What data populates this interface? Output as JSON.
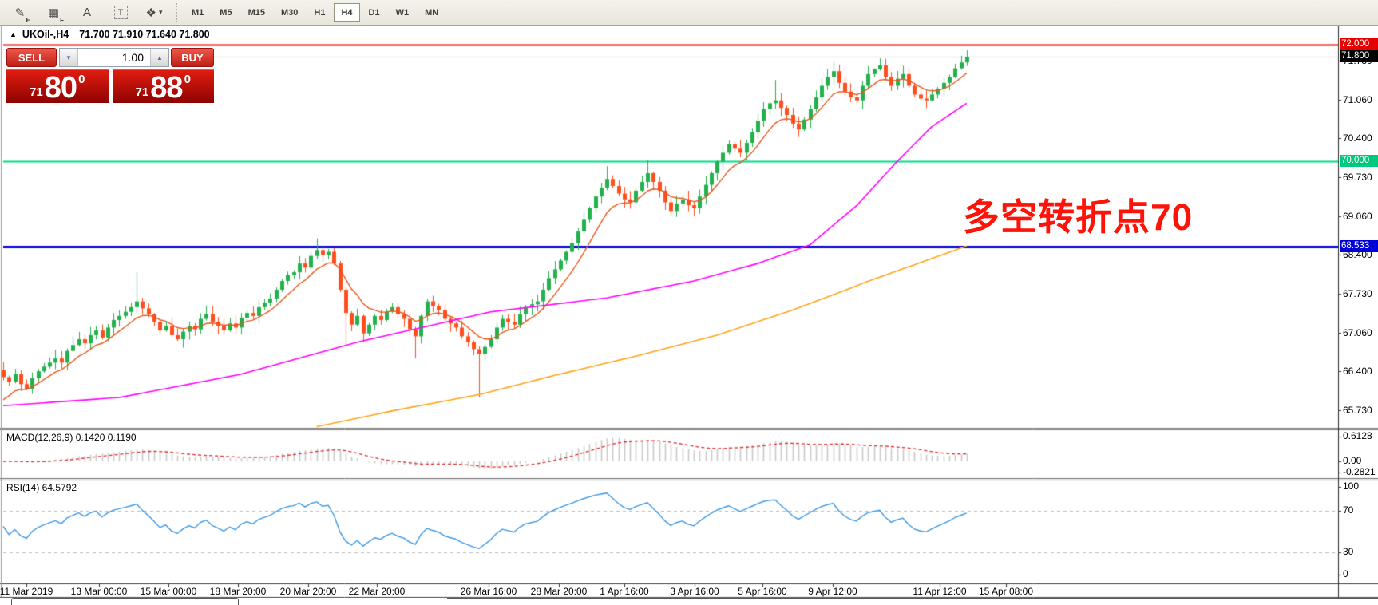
{
  "toolbar": {
    "icons": [
      {
        "name": "draw-hatch-icon",
        "glyph": "✎",
        "sub": "E",
        "boxed": false,
        "dropdown": false
      },
      {
        "name": "grid-icon",
        "glyph": "▦",
        "sub": "F",
        "boxed": false,
        "dropdown": false
      },
      {
        "name": "text-label-icon",
        "glyph": "A",
        "sub": "",
        "boxed": false,
        "dropdown": false
      },
      {
        "name": "text-box-icon",
        "glyph": "T",
        "sub": "",
        "boxed": true,
        "dropdown": false
      },
      {
        "name": "objects-arrange-icon",
        "glyph": "❖",
        "sub": "",
        "boxed": false,
        "dropdown": true
      }
    ],
    "timeframes": [
      {
        "label": "M1",
        "active": false
      },
      {
        "label": "M5",
        "active": false
      },
      {
        "label": "M15",
        "active": false
      },
      {
        "label": "M30",
        "active": false
      },
      {
        "label": "H1",
        "active": false
      },
      {
        "label": "H4",
        "active": true
      },
      {
        "label": "D1",
        "active": false
      },
      {
        "label": "W1",
        "active": false
      },
      {
        "label": "MN",
        "active": false
      }
    ]
  },
  "chart_window": {
    "collapse_arrow": "▲",
    "title_symbol": "UKOil-,H4",
    "title_ohlc": "71.700 71.910 71.640 71.800",
    "annotation": {
      "text": "多空转折点70",
      "color": "#FF1208"
    }
  },
  "trade_panel": {
    "sell_label": "SELL",
    "buy_label": "BUY",
    "volume": "1.00",
    "spin_down": "▼",
    "spin_up": "▲",
    "sell_price": {
      "prefix": "71",
      "big": "80",
      "sup": "0"
    },
    "buy_price": {
      "prefix": "71",
      "big": "88",
      "sup": "0"
    }
  },
  "macd_panel": {
    "label": "MACD(12,26,9) 0.1420 0.1190",
    "axis_labels": [
      "0.6128",
      "0.00",
      "-0.2821"
    ]
  },
  "rsi_panel": {
    "label": "RSI(14) 64.5792",
    "axis_labels": [
      "100",
      "70",
      "30",
      "0"
    ]
  },
  "price_axis": {
    "ticks": [
      "71.730",
      "71.060",
      "70.400",
      "69.730",
      "69.060",
      "68.400",
      "67.730",
      "67.060",
      "66.400",
      "65.730"
    ],
    "badges": [
      {
        "name": "resistance-price-badge",
        "label": "72.000",
        "price": 72.0,
        "bg": "#E60000"
      },
      {
        "name": "current-price-badge",
        "label": "71.800",
        "price": 71.8,
        "bg": "#000000"
      },
      {
        "name": "green-level-price-badge",
        "label": "70.000",
        "price": 70.0,
        "bg": "#00C87D"
      },
      {
        "name": "blue-level-price-badge",
        "label": "68.533",
        "price": 68.533,
        "bg": "#0000D9"
      }
    ]
  },
  "time_axis": {
    "labels": [
      "11 Mar 2019",
      "13 Mar 00:00",
      "15 Mar 00:00",
      "18 Mar 20:00",
      "20 Mar 20:00",
      "22 Mar 20:00",
      "26 Mar 16:00",
      "28 Mar 20:00",
      "1 Apr 16:00",
      "3 Apr 16:00",
      "5 Apr 16:00",
      "9 Apr 12:00",
      "11 Apr 12:00",
      "15 Apr 08:00"
    ]
  },
  "chart_data": {
    "type": "candlestick",
    "symbol": "UKOil-",
    "timeframe": "H4",
    "ohlc_current": {
      "open": 71.7,
      "high": 71.91,
      "low": 71.64,
      "close": 71.8
    },
    "ylim": [
      65.43,
      72.32
    ],
    "closes": [
      66.3,
      66.22,
      66.35,
      66.18,
      66.1,
      66.28,
      66.4,
      66.48,
      66.55,
      66.62,
      66.55,
      66.75,
      66.85,
      66.95,
      66.88,
      67.02,
      67.1,
      66.98,
      67.15,
      67.28,
      67.35,
      67.42,
      67.5,
      67.6,
      67.48,
      67.38,
      67.25,
      67.1,
      67.18,
      67.02,
      66.95,
      67.08,
      67.18,
      67.12,
      67.3,
      67.38,
      67.25,
      67.18,
      67.1,
      67.22,
      67.15,
      67.32,
      67.4,
      67.35,
      67.5,
      67.58,
      67.65,
      67.8,
      67.95,
      68.05,
      68.1,
      68.25,
      68.18,
      68.38,
      68.48,
      68.4,
      68.45,
      68.25,
      67.8,
      67.4,
      67.2,
      67.35,
      67.05,
      67.2,
      67.35,
      67.28,
      67.42,
      67.5,
      67.38,
      67.3,
      67.12,
      67.0,
      67.35,
      67.6,
      67.52,
      67.45,
      67.3,
      67.22,
      67.15,
      67.0,
      66.9,
      66.78,
      66.7,
      66.82,
      66.95,
      67.15,
      67.3,
      67.25,
      67.2,
      67.38,
      67.5,
      67.55,
      67.6,
      67.8,
      68.0,
      68.15,
      68.3,
      68.45,
      68.6,
      68.8,
      69.0,
      69.2,
      69.4,
      69.55,
      69.7,
      69.58,
      69.45,
      69.35,
      69.3,
      69.5,
      69.65,
      69.8,
      69.65,
      69.5,
      69.3,
      69.15,
      69.28,
      69.35,
      69.25,
      69.2,
      69.4,
      69.6,
      69.8,
      70.0,
      70.15,
      70.3,
      70.22,
      70.15,
      70.32,
      70.5,
      70.7,
      70.9,
      71.0,
      71.05,
      70.92,
      70.8,
      70.65,
      70.55,
      70.72,
      70.9,
      71.1,
      71.3,
      71.45,
      71.55,
      71.35,
      71.2,
      71.1,
      71.05,
      71.3,
      71.5,
      71.58,
      71.65,
      71.45,
      71.3,
      71.42,
      71.5,
      71.3,
      71.15,
      71.08,
      71.05,
      71.15,
      71.25,
      71.35,
      71.45,
      71.6,
      71.7
    ],
    "wick_overrides": [
      {
        "i": 23,
        "h": 68.1
      },
      {
        "i": 54,
        "h": 68.68
      },
      {
        "i": 59,
        "l": 66.85
      },
      {
        "i": 71,
        "l": 66.62
      },
      {
        "i": 82,
        "l": 65.95
      },
      {
        "i": 104,
        "h": 69.92
      },
      {
        "i": 111,
        "h": 70.02
      },
      {
        "i": 133,
        "h": 71.4
      },
      {
        "i": 143,
        "h": 71.72
      },
      {
        "i": 151,
        "h": 71.77
      }
    ],
    "hlines": [
      {
        "price": 72.0,
        "color": "#EE0000",
        "width": 2
      },
      {
        "price": 71.8,
        "color": "#BDBDBD",
        "width": 1
      },
      {
        "price": 70.0,
        "color": "#00DC85",
        "width": 2
      },
      {
        "price": 68.533,
        "color": "#0000D9",
        "width": 3
      }
    ],
    "candle_colors": {
      "bull": "#23B14D",
      "bear": "#FF4E1E"
    },
    "ma_fast": {
      "period": 8,
      "color": "#E8571E"
    },
    "ma_medium": {
      "color": "#FF00FF",
      "waypoints": [
        [
          0,
          65.81
        ],
        [
          20,
          65.95
        ],
        [
          41,
          66.35
        ],
        [
          61,
          66.9
        ],
        [
          84,
          67.42
        ],
        [
          104,
          67.66
        ],
        [
          119,
          67.95
        ],
        [
          130,
          68.25
        ],
        [
          139,
          68.57
        ],
        [
          147,
          69.24
        ],
        [
          154,
          70.0
        ],
        [
          160,
          70.6
        ],
        [
          166,
          71.0
        ]
      ]
    },
    "ma_slow": {
      "color": "#FFA318",
      "waypoints": [
        [
          54,
          65.45
        ],
        [
          68,
          65.74
        ],
        [
          82,
          66.0
        ],
        [
          95,
          66.33
        ],
        [
          109,
          66.66
        ],
        [
          123,
          67.02
        ],
        [
          136,
          67.45
        ],
        [
          150,
          67.98
        ],
        [
          166,
          68.55
        ]
      ]
    },
    "macd": {
      "fast": 12,
      "slow": 26,
      "signal": 9,
      "ylim": [
        -0.42,
        0.78
      ],
      "hist_color": "#C9C9C9",
      "signal_color": "#E02A2A"
    },
    "rsi": {
      "period": 14,
      "color": "#3B97E3",
      "levels": [
        70,
        30
      ],
      "ylim": [
        0,
        100
      ]
    },
    "time_label_x": [
      33,
      124,
      211,
      298,
      386,
      472,
      612,
      700,
      782,
      870,
      955,
      1043,
      1177,
      1260
    ]
  }
}
